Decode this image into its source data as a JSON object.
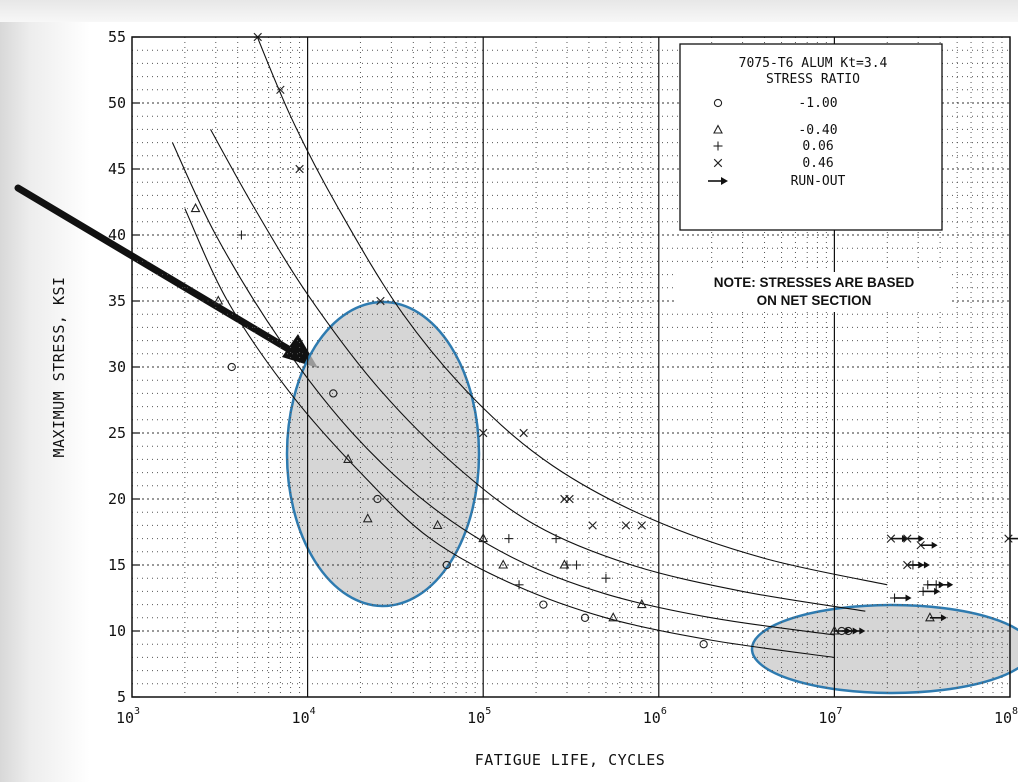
{
  "chart_data": {
    "type": "scatter",
    "x_scale": "log",
    "xlim": [
      1000,
      100000000
    ],
    "ylim": [
      5,
      55
    ],
    "x_ticks": [
      {
        "base": "10",
        "exp": "3",
        "value": 1000
      },
      {
        "base": "10",
        "exp": "4",
        "value": 10000
      },
      {
        "base": "10",
        "exp": "5",
        "value": 100000
      },
      {
        "base": "10",
        "exp": "6",
        "value": 1000000
      },
      {
        "base": "10",
        "exp": "7",
        "value": 10000000
      },
      {
        "base": "10",
        "exp": "8",
        "value": 100000000
      }
    ],
    "y_ticks": [
      "5",
      "10",
      "15",
      "20",
      "25",
      "30",
      "35",
      "40",
      "45",
      "50",
      "55"
    ],
    "xlabel": "FATIGUE LIFE, CYCLES",
    "ylabel": "MAXIMUM STRESS, KSI",
    "grid": true,
    "legend": {
      "placement": "top-right",
      "title_lines": [
        "7075-T6 ALUM Kt=3.4",
        "STRESS RATIO"
      ],
      "entries": [
        {
          "symbol": "circle",
          "label": "-1.00"
        },
        {
          "symbol": "triangle",
          "label": "-0.40"
        },
        {
          "symbol": "plus",
          "label": "0.06"
        },
        {
          "symbol": "cross",
          "label": "0.46"
        },
        {
          "symbol": "runout-arrow",
          "label": "RUN-OUT"
        }
      ]
    },
    "note_lines": [
      "NOTE: STRESSES ARE BASED",
      "ON NET SECTION"
    ],
    "series": [
      {
        "label": "-1.00",
        "symbol": "circle",
        "points": [
          [
            3700,
            30
          ],
          [
            14000,
            28
          ],
          [
            25000,
            20
          ],
          [
            62000,
            15
          ],
          [
            220000,
            12
          ],
          [
            380000,
            11
          ],
          [
            1800000,
            9
          ],
          [
            11000000,
            10
          ],
          [
            12000000,
            10
          ]
        ],
        "runout": [
          [
            11000000,
            10
          ],
          [
            12000000,
            10
          ]
        ],
        "curve": [
          [
            2000,
            42
          ],
          [
            3500,
            35
          ],
          [
            8000,
            28
          ],
          [
            20000,
            22
          ],
          [
            50000,
            17
          ],
          [
            150000,
            13.5
          ],
          [
            500000,
            11
          ],
          [
            2000000,
            9.3
          ],
          [
            10000000,
            8
          ]
        ]
      },
      {
        "label": "-0.40",
        "symbol": "triangle",
        "points": [
          [
            2300,
            42
          ],
          [
            3100,
            35
          ],
          [
            17000,
            23
          ],
          [
            22000,
            18.5
          ],
          [
            55000,
            18
          ],
          [
            100000,
            17
          ],
          [
            130000,
            15
          ],
          [
            290000,
            15
          ],
          [
            550000,
            11
          ],
          [
            800000,
            12
          ],
          [
            10000000,
            10
          ],
          [
            35000000,
            11
          ]
        ],
        "runout": [
          [
            10000000,
            10
          ],
          [
            35000000,
            11
          ]
        ],
        "curve": [
          [
            1700,
            47
          ],
          [
            3000,
            40
          ],
          [
            7000,
            32
          ],
          [
            18000,
            25
          ],
          [
            50000,
            19.5
          ],
          [
            150000,
            15.5
          ],
          [
            500000,
            12.8
          ],
          [
            2000000,
            11
          ],
          [
            10000000,
            9.7
          ]
        ]
      },
      {
        "label": "0.06",
        "symbol": "plus",
        "points": [
          [
            4200,
            40
          ],
          [
            100000,
            20
          ],
          [
            140000,
            17
          ],
          [
            160000,
            13.5
          ],
          [
            260000,
            17
          ],
          [
            300000,
            15
          ],
          [
            340000,
            15
          ],
          [
            500000,
            14
          ],
          [
            22000000,
            12.5
          ],
          [
            32000000,
            13
          ],
          [
            34000000,
            13.5
          ],
          [
            38000000,
            13.5
          ],
          [
            28000000,
            15
          ]
        ],
        "runout": [
          [
            22000000,
            12.5
          ],
          [
            32000000,
            13
          ],
          [
            34000000,
            13.5
          ],
          [
            38000000,
            13.5
          ],
          [
            28000000,
            15
          ]
        ],
        "curve": [
          [
            2800,
            48
          ],
          [
            5000,
            42
          ],
          [
            10000,
            35.5
          ],
          [
            25000,
            28.5
          ],
          [
            70000,
            22.5
          ],
          [
            200000,
            18
          ],
          [
            700000,
            15
          ],
          [
            3000000,
            13
          ],
          [
            15000000,
            11.5
          ]
        ]
      },
      {
        "label": "0.46",
        "symbol": "cross",
        "points": [
          [
            5200,
            55
          ],
          [
            7000,
            51
          ],
          [
            9000,
            45
          ],
          [
            26000,
            35
          ],
          [
            100000,
            25
          ],
          [
            170000,
            25
          ],
          [
            290000,
            20
          ],
          [
            310000,
            20
          ],
          [
            420000,
            18
          ],
          [
            650000,
            18
          ],
          [
            800000,
            18
          ],
          [
            21000000,
            17
          ],
          [
            26000000,
            17
          ],
          [
            31000000,
            16.5
          ],
          [
            26000000,
            15
          ],
          [
            98000000,
            17
          ]
        ],
        "runout": [
          [
            21000000,
            17
          ],
          [
            26000000,
            17
          ],
          [
            31000000,
            16.5
          ],
          [
            26000000,
            15
          ],
          [
            98000000,
            17
          ]
        ],
        "curve": [
          [
            4500,
            57
          ],
          [
            8000,
            49
          ],
          [
            15000,
            42
          ],
          [
            35000,
            34
          ],
          [
            90000,
            27.5
          ],
          [
            250000,
            22.5
          ],
          [
            900000,
            18.5
          ],
          [
            4000000,
            15.5
          ],
          [
            20000000,
            13.5
          ]
        ]
      }
    ]
  }
}
